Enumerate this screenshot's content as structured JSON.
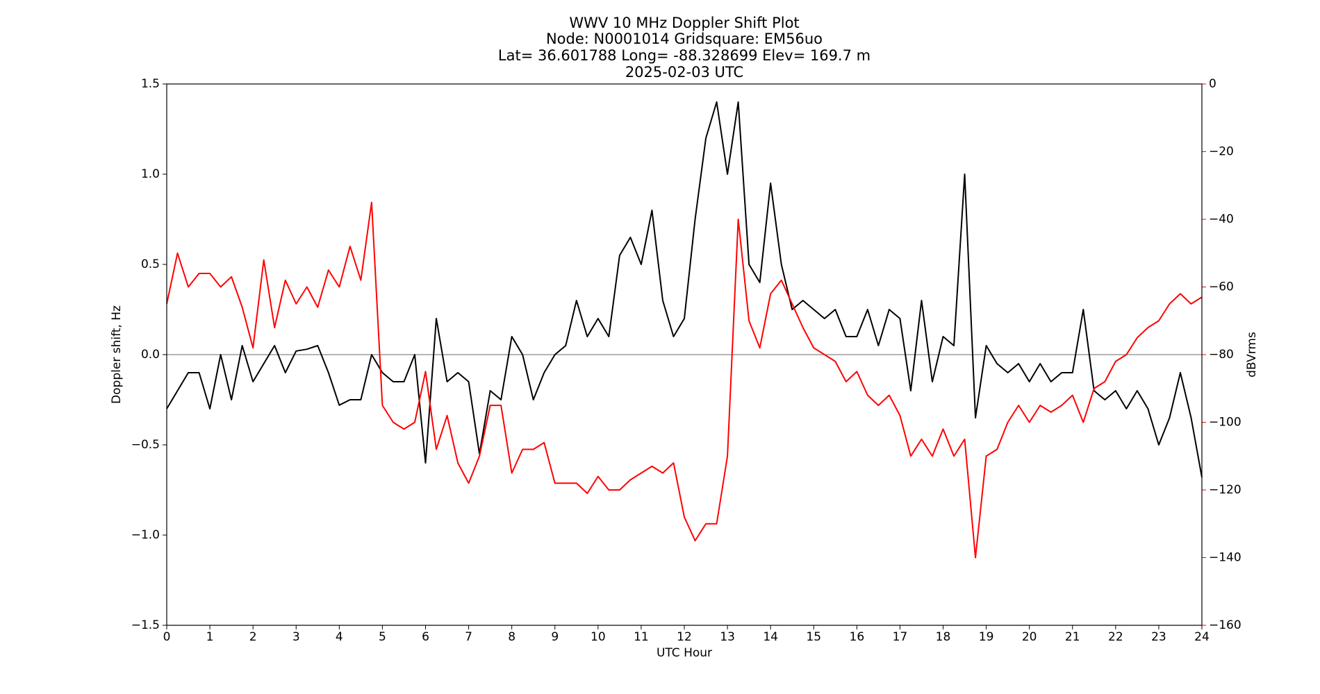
{
  "chart_data": {
    "type": "line",
    "title": [
      "WWV 10 MHz Doppler Shift Plot",
      "Node:  N0001014     Gridsquare:  EM56uo",
      "Lat= 36.601788    Long= -88.328699    Elev= 169.7 m",
      "2025-02-03  UTC"
    ],
    "xlabel": "UTC Hour",
    "ylabel": "Doppler shift, Hz",
    "y2label": "dBVrms",
    "y2color": "red",
    "xlim": [
      0,
      24
    ],
    "xticks": [
      0,
      1,
      2,
      3,
      4,
      5,
      6,
      7,
      8,
      9,
      10,
      11,
      12,
      13,
      14,
      15,
      16,
      17,
      18,
      19,
      20,
      21,
      22,
      23,
      24
    ],
    "ylim": [
      -1.5,
      1.5
    ],
    "yticks": [
      {
        "value": -1.5,
        "label": "−1.5"
      },
      {
        "value": -1.0,
        "label": "−1.0"
      },
      {
        "value": -0.5,
        "label": "−0.5"
      },
      {
        "value": 0,
        "label": "0.0"
      },
      {
        "value": 0.5,
        "label": "0.5"
      },
      {
        "value": 1.0,
        "label": "1.0"
      },
      {
        "value": 1.5,
        "label": "1.5"
      }
    ],
    "y2lim": [
      -160,
      0
    ],
    "y2ticks": [
      0,
      {
        "value": -20,
        "label": "−20"
      },
      {
        "value": -40,
        "label": "−40"
      },
      {
        "value": -60,
        "label": "−60"
      },
      {
        "value": -80,
        "label": "−80"
      },
      {
        "value": -100,
        "label": "−100"
      },
      {
        "value": -120,
        "label": "−120"
      },
      {
        "value": -140,
        "label": "−140"
      },
      {
        "value": -160,
        "label": "−160"
      }
    ],
    "hlines": [
      0
    ],
    "x": [
      0,
      0.25,
      0.5,
      0.75,
      1,
      1.25,
      1.5,
      1.75,
      2,
      2.25,
      2.5,
      2.75,
      3,
      3.25,
      3.5,
      3.75,
      4,
      4.25,
      4.5,
      4.75,
      5,
      5.25,
      5.5,
      5.75,
      6,
      6.25,
      6.5,
      6.75,
      7,
      7.25,
      7.5,
      7.75,
      8,
      8.25,
      8.5,
      8.75,
      9,
      9.25,
      9.5,
      9.75,
      10,
      10.25,
      10.5,
      10.75,
      11,
      11.25,
      11.5,
      11.75,
      12,
      12.25,
      12.5,
      12.75,
      13,
      13.25,
      13.5,
      13.75,
      14,
      14.25,
      14.5,
      14.75,
      15,
      15.25,
      15.5,
      15.75,
      16,
      16.25,
      16.5,
      16.75,
      17,
      17.25,
      17.5,
      17.75,
      18,
      18.25,
      18.5,
      18.75,
      19,
      19.25,
      19.5,
      19.75,
      20,
      20.25,
      20.5,
      20.75,
      21,
      21.25,
      21.5,
      21.75,
      22,
      22.25,
      22.5,
      22.75,
      23,
      23.25,
      23.5,
      23.75,
      24
    ],
    "series": [
      {
        "name": "Doppler shift",
        "color": "#000000",
        "axis": "y",
        "values": [
          -0.3,
          -0.2,
          -0.1,
          -0.1,
          -0.3,
          0.0,
          -0.25,
          0.05,
          -0.15,
          -0.05,
          0.05,
          -0.1,
          0.02,
          0.03,
          0.05,
          -0.1,
          -0.28,
          -0.25,
          -0.25,
          0.0,
          -0.1,
          -0.15,
          -0.15,
          0.0,
          -0.6,
          0.2,
          -0.15,
          -0.1,
          -0.15,
          -0.55,
          -0.2,
          -0.25,
          0.1,
          0.0,
          -0.25,
          -0.1,
          0.0,
          0.05,
          0.3,
          0.1,
          0.2,
          0.1,
          0.55,
          0.65,
          0.5,
          0.8,
          0.3,
          0.1,
          0.2,
          0.75,
          1.2,
          1.4,
          1.0,
          1.4,
          0.5,
          0.4,
          0.95,
          0.5,
          0.25,
          0.3,
          0.25,
          0.2,
          0.25,
          0.1,
          0.1,
          0.25,
          0.05,
          0.25,
          0.2,
          -0.2,
          0.3,
          -0.15,
          0.1,
          0.05,
          1.0,
          -0.35,
          0.05,
          -0.05,
          -0.1,
          -0.05,
          -0.15,
          -0.05,
          -0.15,
          -0.1,
          -0.1,
          0.25,
          -0.2,
          -0.25,
          -0.2,
          -0.3,
          -0.2,
          -0.3,
          -0.5,
          -0.35,
          -0.1,
          -0.35,
          -0.68
        ]
      },
      {
        "name": "dBVrms",
        "color": "#ff0000",
        "axis": "y2",
        "values": [
          -65,
          -50,
          -60,
          -56,
          -56,
          -60,
          -57,
          -66,
          -78,
          -52,
          -72,
          -58,
          -65,
          -60,
          -66,
          -55,
          -60,
          -48,
          -58,
          -35,
          -95,
          -100,
          -102,
          -100,
          -85,
          -108,
          -98,
          -112,
          -118,
          -110,
          -95,
          -95,
          -115,
          -108,
          -108,
          -106,
          -118,
          -118,
          -118,
          -121,
          -116,
          -120,
          -120,
          -117,
          -115,
          -113,
          -115,
          -112,
          -128,
          -135,
          -130,
          -130,
          -110,
          -40,
          -70,
          -78,
          -62,
          -58,
          -65,
          -72,
          -78,
          -80,
          -82,
          -88,
          -85,
          -92,
          -95,
          -92,
          -98,
          -110,
          -105,
          -110,
          -102,
          -110,
          -105,
          -140,
          -110,
          -108,
          -100,
          -95,
          -100,
          -95,
          -97,
          -95,
          -92,
          -100,
          -90,
          -88,
          -82,
          -80,
          -75,
          -72,
          -70,
          -65,
          -62,
          -65,
          -63
        ]
      }
    ]
  }
}
